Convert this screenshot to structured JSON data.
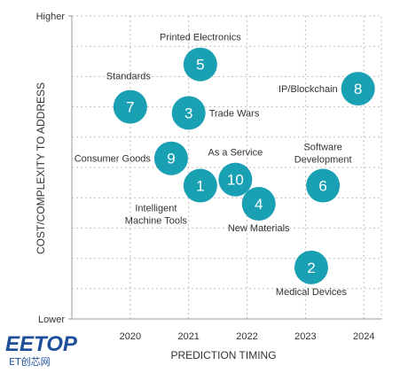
{
  "chart_data": {
    "type": "scatter",
    "xlabel": "PREDICTION TIMING",
    "ylabel": "COST/COMPLEXITY TO ADDRESS",
    "xlim": [
      2019,
      2024.3
    ],
    "ylim": [
      0,
      100
    ],
    "x_ticks": [
      "2020",
      "2021",
      "2022",
      "2023",
      "2024"
    ],
    "y_ticks": [
      {
        "value": 100,
        "label": "Higher"
      },
      {
        "value": 0,
        "label": "Lower"
      }
    ],
    "grid": "dashed",
    "points": [
      {
        "id": "1",
        "label": "Intelligent Machine Tools",
        "x": 2021.2,
        "y": 44,
        "label_pos": "bottom-left"
      },
      {
        "id": "2",
        "label": "Medical Devices",
        "x": 2023.1,
        "y": 17,
        "label_pos": "bottom"
      },
      {
        "id": "3",
        "label": "Trade Wars",
        "x": 2021.0,
        "y": 68,
        "label_pos": "right"
      },
      {
        "id": "4",
        "label": "New Materials",
        "x": 2022.2,
        "y": 38,
        "label_pos": "bottom"
      },
      {
        "id": "5",
        "label": "Printed Electronics",
        "x": 2021.2,
        "y": 84,
        "label_pos": "top"
      },
      {
        "id": "6",
        "label": "Software Development",
        "x": 2023.3,
        "y": 44,
        "label_pos": "top"
      },
      {
        "id": "7",
        "label": "Standards",
        "x": 2020.0,
        "y": 70,
        "label_pos": "top-left"
      },
      {
        "id": "8",
        "label": "IP/Blockchain",
        "x": 2023.9,
        "y": 76,
        "label_pos": "left"
      },
      {
        "id": "9",
        "label": "Consumer Goods",
        "x": 2020.7,
        "y": 53,
        "label_pos": "left"
      },
      {
        "id": "10",
        "label": "As a Service",
        "x": 2021.8,
        "y": 46,
        "label_pos": "top"
      }
    ],
    "bubble_color": "#1aa0b3",
    "bubble_text_color": "#ffffff"
  },
  "watermark": {
    "text": "EETOP",
    "subtext": "ET创芯网",
    "color": "#1d4f9b"
  }
}
